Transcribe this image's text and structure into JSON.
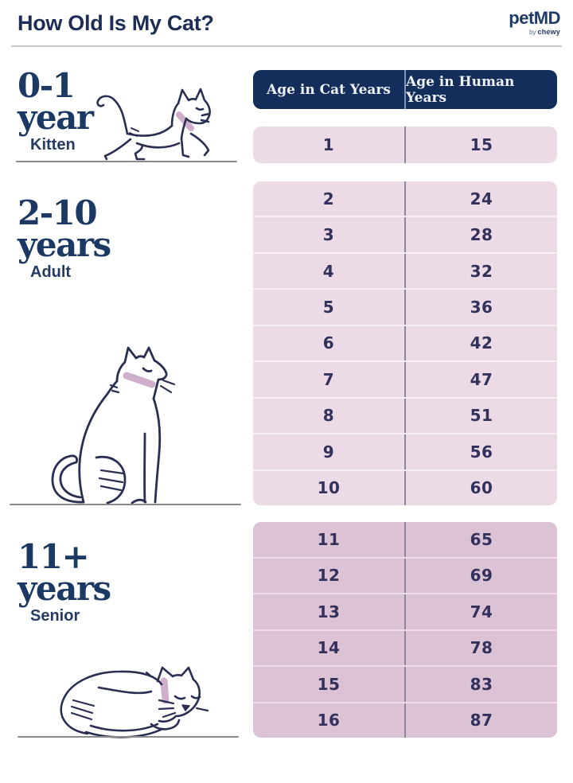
{
  "page": {
    "title": "How Old Is My Cat?",
    "brand": {
      "name": "petMD",
      "byline_prefix": "by",
      "byline_brand": "chewy"
    }
  },
  "table": {
    "headers": [
      "Age in Cat Years",
      "Age in Human Years"
    ]
  },
  "sections": [
    {
      "age_range": "0-1",
      "age_unit": "year",
      "stage": "Kitten",
      "illustration": "walking-kitten-icon"
    },
    {
      "age_range": "2-10",
      "age_unit": "years",
      "stage": "Adult",
      "illustration": "sitting-cat-icon"
    },
    {
      "age_range": "11+",
      "age_unit": "years",
      "stage": "Senior",
      "illustration": "sleeping-cat-icon"
    }
  ],
  "chart_data": {
    "type": "table",
    "title": "How Old Is My Cat?",
    "columns": [
      "Age in Cat Years",
      "Age in Human Years"
    ],
    "groups": [
      {
        "label": "0-1 year",
        "stage": "Kitten",
        "rows": [
          [
            1,
            15
          ]
        ]
      },
      {
        "label": "2-10 years",
        "stage": "Adult",
        "rows": [
          [
            2,
            24
          ],
          [
            3,
            28
          ],
          [
            4,
            32
          ],
          [
            5,
            36
          ],
          [
            6,
            42
          ],
          [
            7,
            47
          ],
          [
            8,
            51
          ],
          [
            9,
            56
          ],
          [
            10,
            60
          ]
        ]
      },
      {
        "label": "11+ years",
        "stage": "Senior",
        "rows": [
          [
            11,
            65
          ],
          [
            12,
            69
          ],
          [
            13,
            74
          ],
          [
            14,
            78
          ],
          [
            15,
            83
          ],
          [
            16,
            87
          ]
        ]
      }
    ]
  },
  "colors": {
    "header_navy": "#132e5b",
    "heading_navy": "#1c3964",
    "number_navy": "#32315b",
    "row_pink_light": "#ecdbe7",
    "row_pink_dark": "#dcc2d5",
    "divider_gray": "#8c879c",
    "ground_gray": "#8a8a8a",
    "collar_pink": "#cfaecb"
  }
}
